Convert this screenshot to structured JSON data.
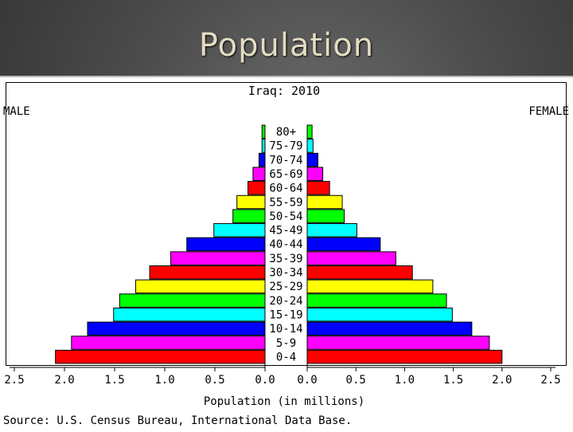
{
  "slide": {
    "title": "Population"
  },
  "chart_data": {
    "type": "bar",
    "title": "Iraq: 2010",
    "left_label": "MALE",
    "right_label": "FEMALE",
    "xlabel": "Population (in millions)",
    "source": "Source: U.S. Census Bureau, International Data Base.",
    "xlim": [
      0,
      2.5
    ],
    "x_ticks": [
      "0.0",
      "0.5",
      "1.0",
      "1.5",
      "2.0",
      "2.5"
    ],
    "categories": [
      "80+",
      "75-79",
      "70-74",
      "65-69",
      "60-64",
      "55-59",
      "50-54",
      "45-49",
      "40-44",
      "35-39",
      "30-34",
      "25-29",
      "20-24",
      "15-19",
      "10-14",
      "5-9",
      "0-4"
    ],
    "series": [
      {
        "name": "Male",
        "values": [
          0.03,
          0.03,
          0.06,
          0.12,
          0.17,
          0.28,
          0.32,
          0.51,
          0.78,
          0.94,
          1.15,
          1.29,
          1.45,
          1.51,
          1.77,
          1.93,
          2.09
        ]
      },
      {
        "name": "Female",
        "values": [
          0.05,
          0.06,
          0.11,
          0.16,
          0.23,
          0.36,
          0.38,
          0.51,
          0.75,
          0.91,
          1.08,
          1.29,
          1.43,
          1.49,
          1.69,
          1.87,
          2.0
        ]
      }
    ],
    "bar_colors": [
      "#00ff00",
      "#00ffff",
      "#0000ff",
      "#ff00ff",
      "#ff0000",
      "#ffff00",
      "#00ff00",
      "#00ffff",
      "#0000ff",
      "#ff00ff",
      "#ff0000",
      "#ffff00",
      "#00ff00",
      "#00ffff",
      "#0000ff",
      "#ff00ff",
      "#ff0000"
    ]
  }
}
